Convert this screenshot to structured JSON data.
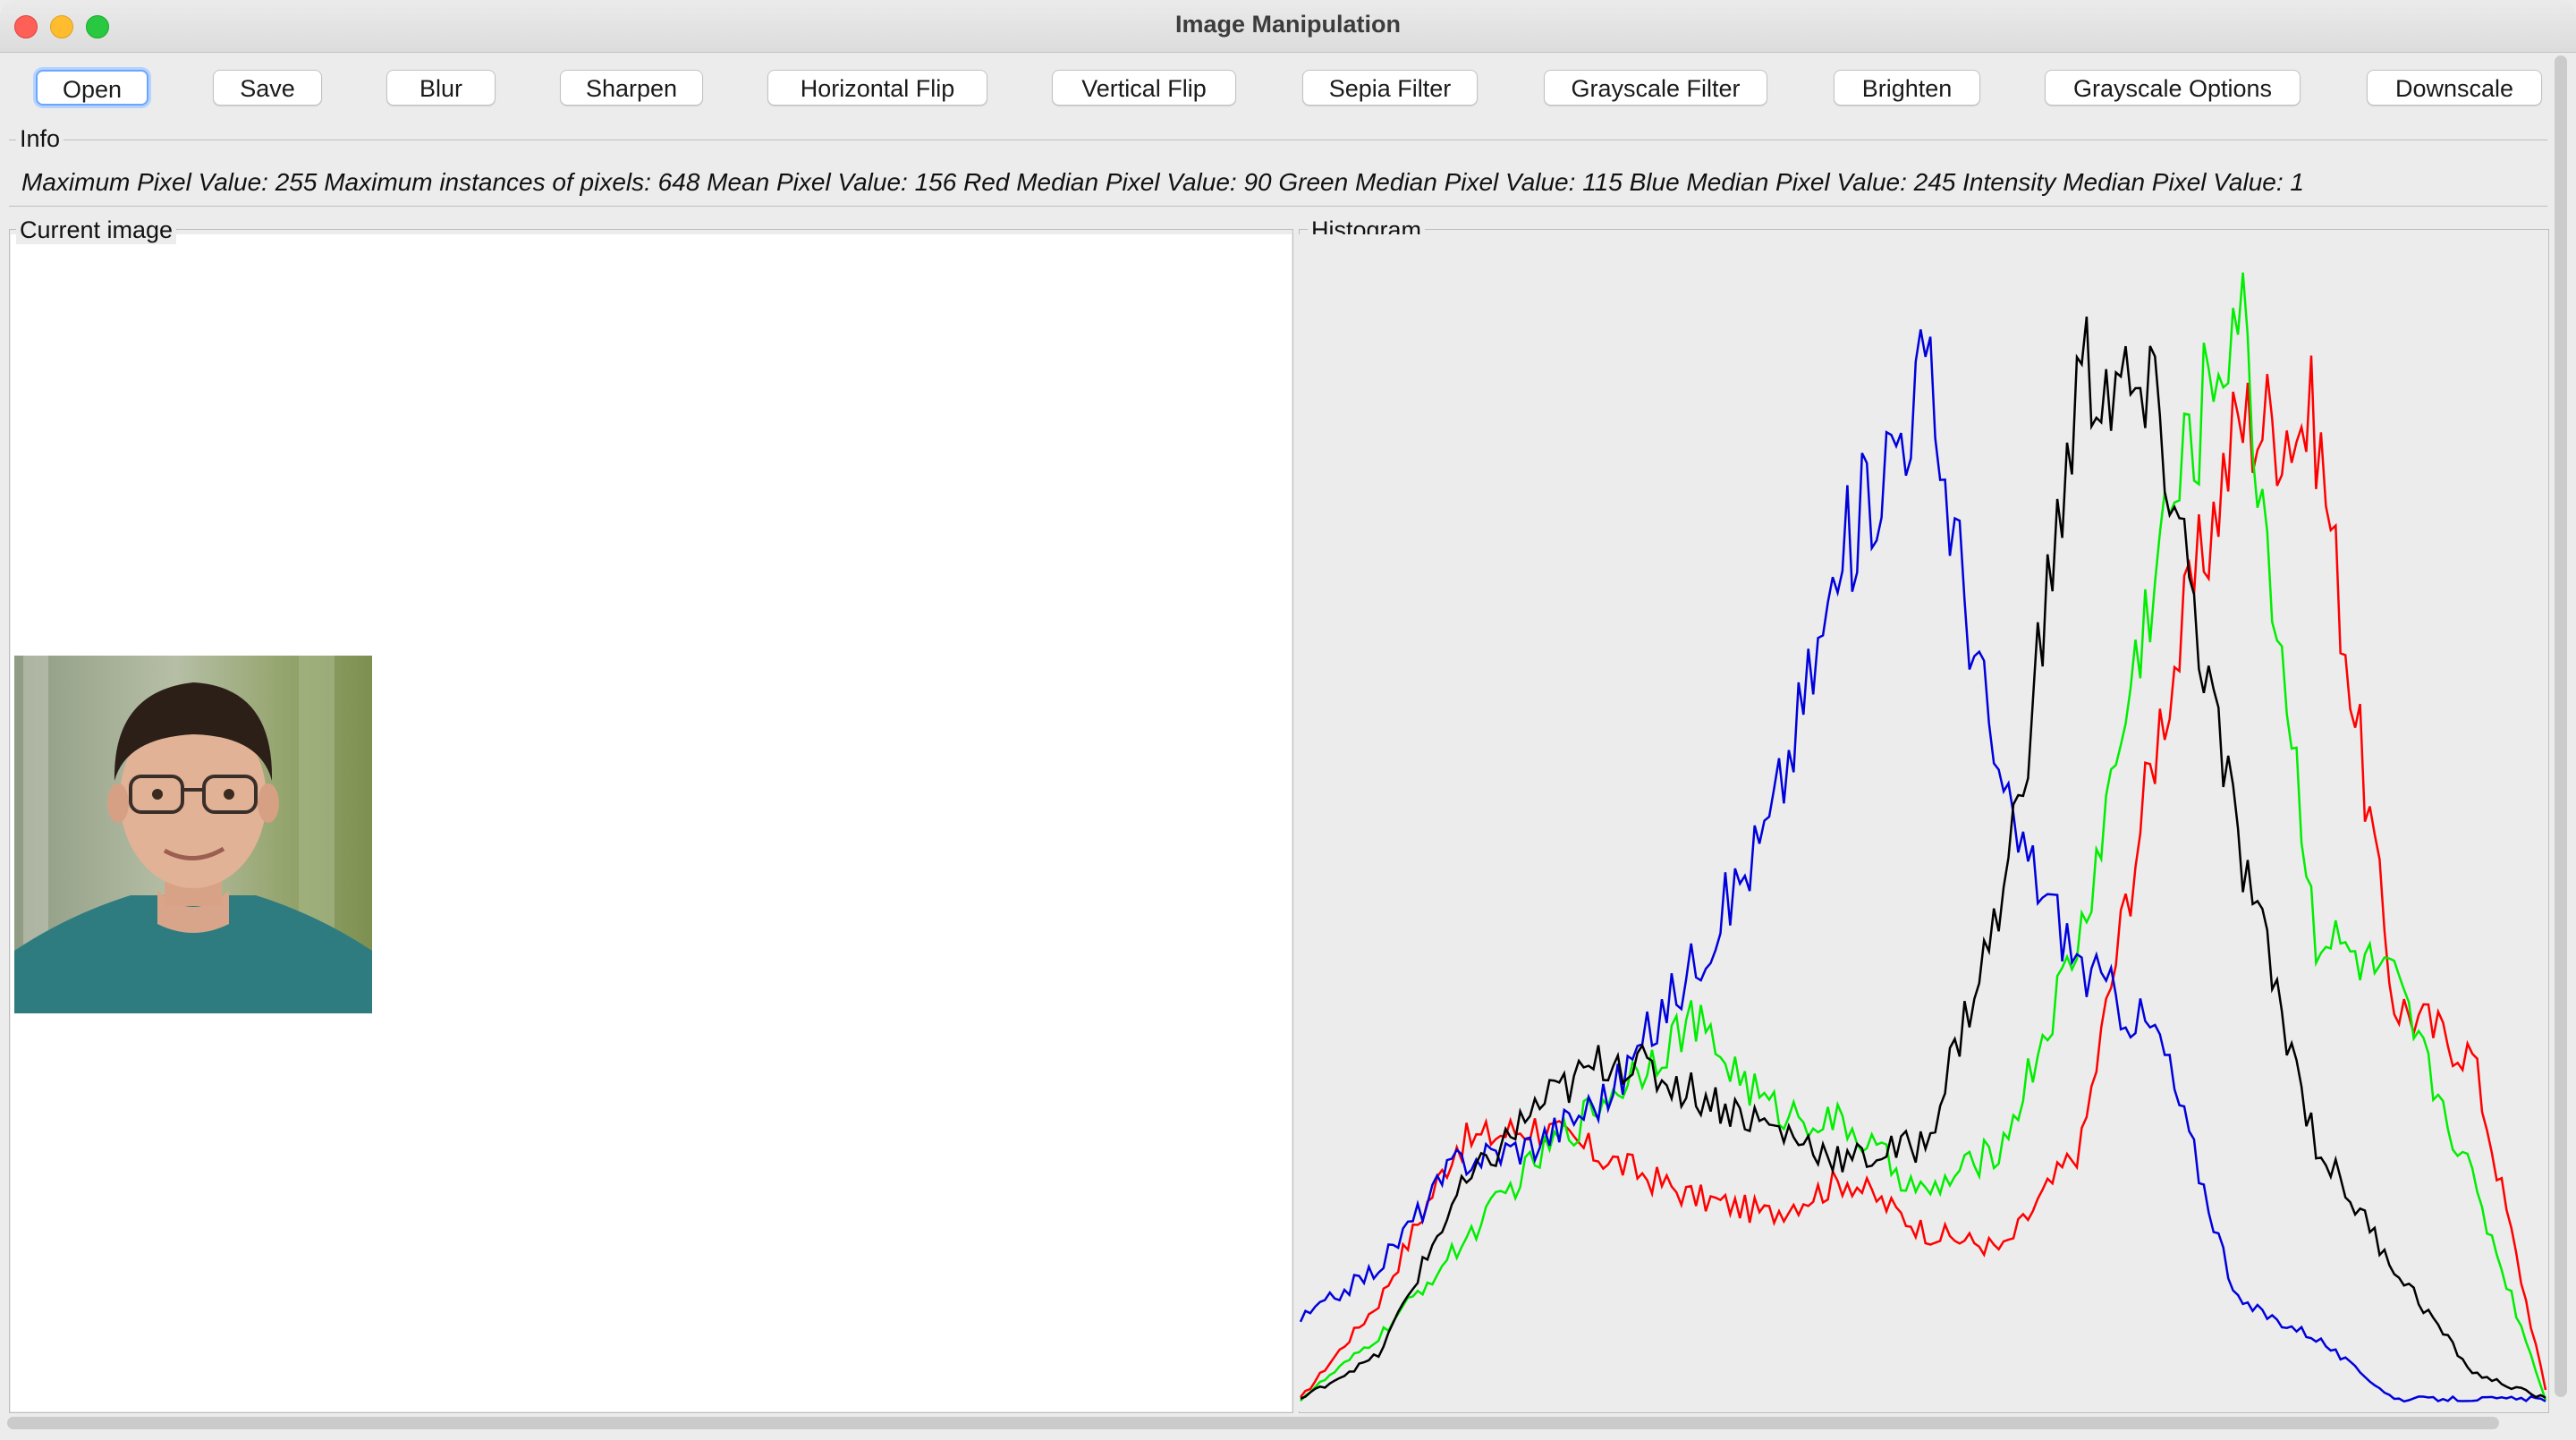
{
  "window": {
    "title": "Image Manipulation"
  },
  "toolbar": {
    "buttons": [
      {
        "label": "Open",
        "name": "open-button"
      },
      {
        "label": "Save",
        "name": "save-button"
      },
      {
        "label": "Blur",
        "name": "blur-button"
      },
      {
        "label": "Sharpen",
        "name": "sharpen-button"
      },
      {
        "label": "Horizontal Flip",
        "name": "horizontal-flip-button"
      },
      {
        "label": "Vertical Flip",
        "name": "vertical-flip-button"
      },
      {
        "label": "Sepia Filter",
        "name": "sepia-filter-button"
      },
      {
        "label": "Grayscale Filter",
        "name": "grayscale-filter-button"
      },
      {
        "label": "Brighten",
        "name": "brighten-button"
      },
      {
        "label": "Grayscale Options",
        "name": "grayscale-options-button"
      },
      {
        "label": "Downscale",
        "name": "downscale-button"
      }
    ]
  },
  "info": {
    "legend": "Info",
    "text": "Maximum Pixel Value: 255  Maximum instances of pixels: 648  Mean Pixel Value: 156  Red Median Pixel Value: 90  Green Median Pixel Value: 115  Blue Median Pixel Value: 245  Intensity Median Pixel Value: 1"
  },
  "current_image": {
    "legend": "Current image",
    "subject": "portrait-photo"
  },
  "histogram": {
    "legend": "Histogram"
  },
  "chart_data": {
    "type": "line",
    "x": [
      0,
      16,
      32,
      48,
      64,
      80,
      96,
      112,
      128,
      144,
      160,
      176,
      192,
      208,
      224,
      240,
      255
    ],
    "ylim": [
      0,
      648
    ],
    "grid": false,
    "colors": {
      "red": "#ff0000",
      "green": "#00ee00",
      "blue": "#0000dd",
      "intensity": "#000000"
    },
    "series": [
      {
        "color": "red",
        "values": [
          5,
          60,
          150,
          160,
          140,
          120,
          110,
          130,
          100,
          90,
          150,
          390,
          560,
          560,
          230,
          200,
          10
        ]
      },
      {
        "color": "green",
        "values": [
          5,
          40,
          90,
          140,
          180,
          220,
          170,
          160,
          120,
          150,
          270,
          490,
          630,
          270,
          240,
          130,
          5
        ]
      },
      {
        "color": "blue",
        "values": [
          50,
          80,
          140,
          150,
          180,
          250,
          330,
          490,
          590,
          340,
          250,
          210,
          60,
          40,
          5,
          5,
          5
        ]
      },
      {
        "color": "intensity",
        "values": [
          5,
          30,
          120,
          170,
          200,
          180,
          160,
          140,
          150,
          290,
          590,
          560,
          320,
          150,
          80,
          20,
          5
        ]
      }
    ]
  }
}
